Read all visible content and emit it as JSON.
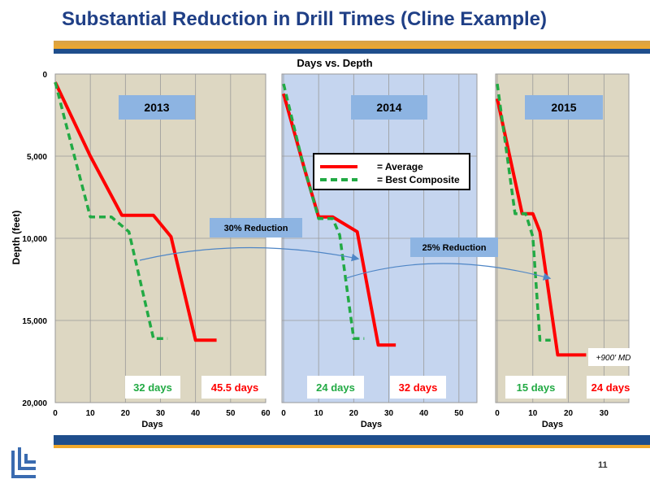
{
  "slide": {
    "title": "Substantial Reduction in Drill Times (Cline Example)",
    "page_number": "11"
  },
  "colors": {
    "title": "#1f3f86",
    "average": "#ff0000",
    "best_composite": "#22aa44",
    "panel_bg": "#ddd7c2",
    "panel_2014_bg": "#c5d5ef",
    "arrow": "#4f86c6"
  },
  "chart_data": {
    "type": "line",
    "title": "Days vs. Depth",
    "ylabel": "Depth (feet)",
    "xlabel": "Days",
    "ylim": [
      20000,
      0
    ],
    "y_ticks": [
      "0",
      "5,000",
      "10,000",
      "15,000",
      "20,000"
    ],
    "y_tick_values": [
      0,
      5000,
      10000,
      15000,
      20000
    ],
    "grid": true,
    "legend": {
      "placement": "center",
      "entries": [
        {
          "label": "= Average",
          "series": "Average"
        },
        {
          "label": "= Best Composite",
          "series": "Best Composite"
        }
      ]
    },
    "panels": [
      {
        "year": "2013",
        "xlim": [
          0,
          60
        ],
        "x_ticks": [
          0,
          10,
          20,
          30,
          40,
          50,
          60
        ],
        "series": [
          {
            "name": "Average",
            "x": [
              0,
              10,
              19,
              28,
              33,
              40,
              46
            ],
            "y": [
              500,
              5000,
              8600,
              8600,
              9900,
              16200,
              16200
            ]
          },
          {
            "name": "Best Composite",
            "x": [
              0,
              3,
              10,
              16,
              21,
              28,
              32
            ],
            "y": [
              500,
              3000,
              8700,
              8700,
              9600,
              16100,
              16100
            ]
          }
        ],
        "best_label": "32 days",
        "avg_label": "45.5 days"
      },
      {
        "year": "2014",
        "xlim": [
          0,
          60
        ],
        "x_ticks": [
          0,
          10,
          20,
          30,
          40,
          50
        ],
        "series": [
          {
            "name": "Average",
            "x": [
              0,
              6,
              10,
              14,
              21,
              27,
              32
            ],
            "y": [
              1200,
              5800,
              8700,
              8700,
              9600,
              16500,
              16500
            ]
          },
          {
            "name": "Best Composite",
            "x": [
              0,
              5,
              10,
              14,
              16,
              20,
              23
            ],
            "y": [
              600,
              5000,
              8800,
              8800,
              9800,
              16100,
              16100
            ]
          }
        ],
        "best_label": "24 days",
        "avg_label": "32 days"
      },
      {
        "year": "2015",
        "xlim": [
          0,
          37
        ],
        "x_ticks": [
          0,
          10,
          20,
          30
        ],
        "series": [
          {
            "name": "Average",
            "x": [
              0,
              7,
              10,
              12,
              17,
              20,
              25
            ],
            "y": [
              1500,
              8500,
              8500,
              9600,
              17100,
              17100,
              17100
            ]
          },
          {
            "name": "Best Composite",
            "x": [
              0,
              5,
              8,
              10,
              12,
              15
            ],
            "y": [
              600,
              8500,
              8500,
              9900,
              16200,
              16200
            ]
          }
        ],
        "best_label": "15 days",
        "avg_label": "24 days",
        "annotation": "+900' MD"
      }
    ],
    "reductions": [
      {
        "label": "30% Reduction",
        "from_panel": 0,
        "to_panel": 1
      },
      {
        "label": "25% Reduction",
        "from_panel": 1,
        "to_panel": 2
      }
    ]
  }
}
